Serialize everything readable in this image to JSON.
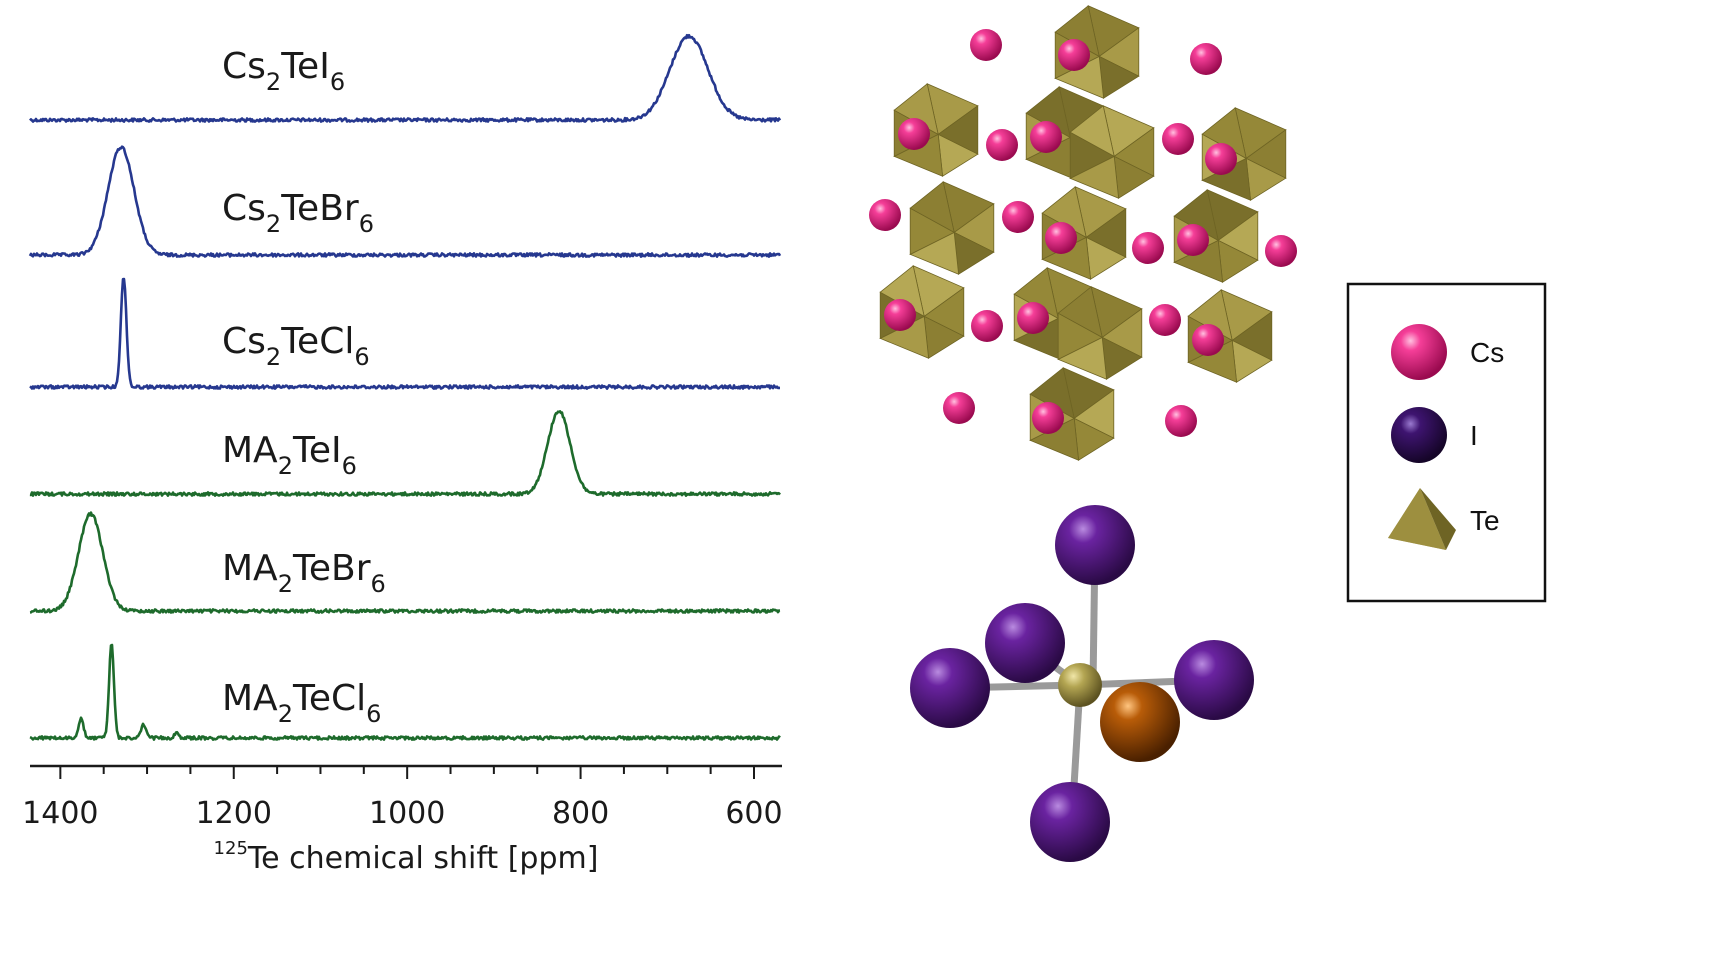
{
  "chart_data": {
    "type": "line",
    "title": "",
    "xlabel_isotope": "125",
    "xlabel_text": "Te chemical shift [ppm]",
    "ylabel": "",
    "x_direction": "reversed",
    "xlim": [
      1435,
      570
    ],
    "xticks": [
      1400,
      1200,
      1000,
      800,
      600
    ],
    "grid": false,
    "series": [
      {
        "name": "Cs2TeI6",
        "label_main": "Cs",
        "label_sub1": "2",
        "label_mid": "TeI",
        "label_sub2": "6",
        "color": "#26388f",
        "peaks": [
          {
            "center": 675,
            "height": 1.0,
            "width": 22
          }
        ]
      },
      {
        "name": "Cs2TeBr6",
        "label_main": "Cs",
        "label_sub1": "2",
        "label_mid": "TeBr",
        "label_sub2": "6",
        "color": "#26388f",
        "peaks": [
          {
            "center": 1330,
            "height": 1.0,
            "width": 15
          }
        ]
      },
      {
        "name": "Cs2TeCl6",
        "label_main": "Cs",
        "label_sub1": "2",
        "label_mid": "TeCl",
        "label_sub2": "6",
        "color": "#26388f",
        "peaks": [
          {
            "center": 1327,
            "height": 1.0,
            "width": 3.2
          }
        ]
      },
      {
        "name": "MA2TeI6",
        "label_main": "MA",
        "label_sub1": "2",
        "label_mid": "TeI",
        "label_sub2": "6",
        "color": "#1e6b2c",
        "peaks": [
          {
            "center": 825,
            "height": 1.0,
            "width": 13
          }
        ]
      },
      {
        "name": "MA2TeBr6",
        "label_main": "MA",
        "label_sub1": "2",
        "label_mid": "TeBr",
        "label_sub2": "6",
        "color": "#1e6b2c",
        "peaks": [
          {
            "center": 1365,
            "height": 1.0,
            "width": 14
          }
        ]
      },
      {
        "name": "MA2TeCl6",
        "label_main": "MA",
        "label_sub1": "2",
        "label_mid": "TeCl",
        "label_sub2": "6",
        "color": "#1e6b2c",
        "peaks": [
          {
            "center": 1341,
            "height": 1.0,
            "width": 2.8
          },
          {
            "center": 1376,
            "height": 0.2,
            "width": 2.8
          },
          {
            "center": 1304,
            "height": 0.14,
            "width": 2.8
          },
          {
            "center": 1266,
            "height": 0.05,
            "width": 2.8
          }
        ]
      }
    ]
  },
  "legend": {
    "items": [
      {
        "label": "Cs",
        "icon": "cs-atom-sphere",
        "color": "#e8137a"
      },
      {
        "label": "I",
        "icon": "i-atom-sphere",
        "color": "#4a1878"
      },
      {
        "label": "Te",
        "icon": "te-pyramid",
        "color": "#9a8c3c"
      }
    ]
  },
  "structure": {
    "octahedron_color": "#9a8c3c",
    "cs_color": "#e8137a",
    "iodine_color": "#55167f",
    "te_center_color": "#b3a552",
    "highlight_ligand_color": "#a04a00"
  }
}
